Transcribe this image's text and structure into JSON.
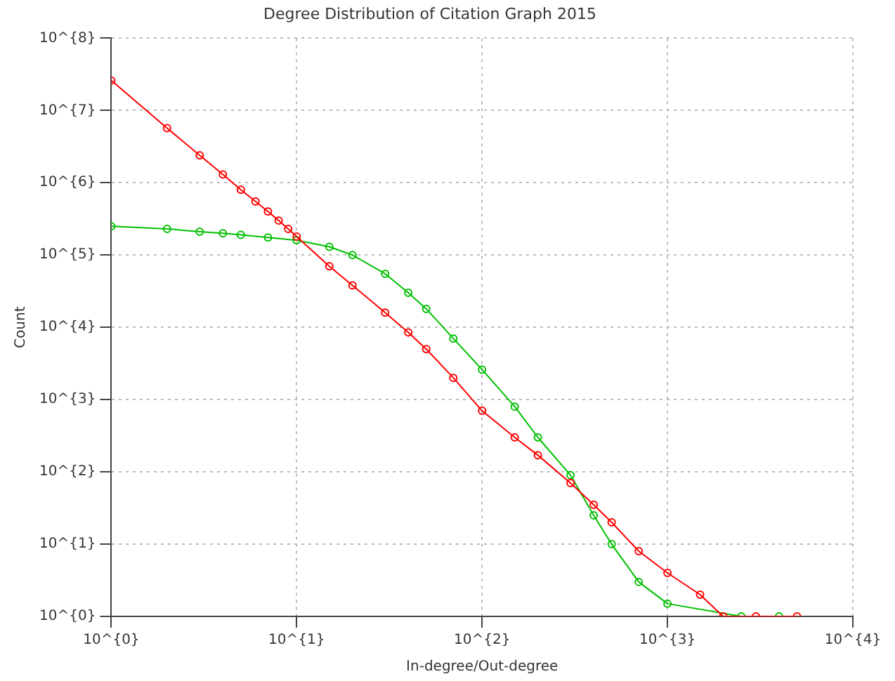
{
  "chart_data": {
    "type": "line",
    "title": "Degree Distribution of Citation Graph 2015",
    "xlabel": "In-degree/Out-degree",
    "ylabel": "Count",
    "log": "xy",
    "grid": true,
    "legend": false,
    "marker": "circle",
    "line_style": "solid",
    "xlim": [
      1,
      10000
    ],
    "ylim": [
      1,
      100000000
    ],
    "xticks": [
      {
        "value": 1,
        "label": "10^{0}"
      },
      {
        "value": 10,
        "label": "10^{1}"
      },
      {
        "value": 100,
        "label": "10^{2}"
      },
      {
        "value": 1000,
        "label": "10^{3}"
      },
      {
        "value": 10000,
        "label": "10^{4}"
      }
    ],
    "yticks": [
      {
        "value": 1,
        "label": "10^{0}"
      },
      {
        "value": 10,
        "label": "10^{1}"
      },
      {
        "value": 100,
        "label": "10^{2}"
      },
      {
        "value": 1000,
        "label": "10^{3}"
      },
      {
        "value": 10000,
        "label": "10^{4}"
      },
      {
        "value": 100000,
        "label": "10^{5}"
      },
      {
        "value": 1000000,
        "label": "10^{6}"
      },
      {
        "value": 10000000,
        "label": "10^{7}"
      },
      {
        "value": 100000000,
        "label": "10^{8}"
      }
    ],
    "series": [
      {
        "color": "#ff0000",
        "x": [
          1,
          2,
          3,
          4,
          5,
          6,
          7,
          8,
          9,
          10,
          15,
          20,
          30,
          40,
          50,
          70,
          100,
          150,
          200,
          300,
          400,
          500,
          700,
          1000,
          1500,
          2000,
          3000,
          5000
        ],
        "values": [
          26000000,
          5700000,
          2400000,
          1300000,
          800000,
          550000,
          400000,
          300000,
          230000,
          180000,
          70000,
          38000,
          16000,
          8500,
          5000,
          2000,
          700,
          300,
          170,
          70,
          35,
          20,
          8,
          4,
          2,
          1,
          1,
          1
        ]
      },
      {
        "color": "#00c000",
        "x": [
          1,
          2,
          3,
          4,
          5,
          7,
          10,
          15,
          20,
          30,
          40,
          50,
          70,
          100,
          150,
          200,
          300,
          400,
          500,
          700,
          1000,
          2500,
          4000
        ],
        "values": [
          250000,
          230000,
          210000,
          200000,
          190000,
          175000,
          160000,
          130000,
          100000,
          55000,
          30000,
          18000,
          7000,
          2600,
          800,
          300,
          90,
          25,
          10,
          3,
          1.5,
          1,
          1
        ]
      }
    ]
  }
}
